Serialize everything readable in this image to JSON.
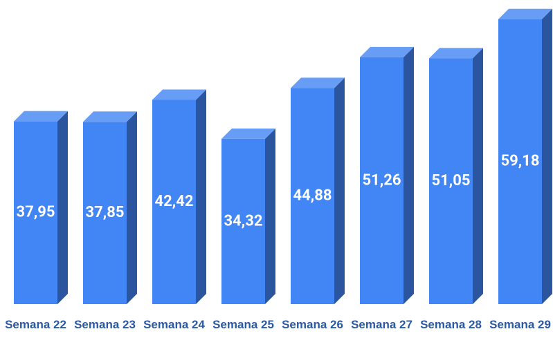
{
  "chart_data": {
    "type": "bar3d",
    "categories": [
      "Semana 22",
      "Semana 23",
      "Semana 24",
      "Semana 25",
      "Semana 26",
      "Semana 27",
      "Semana 28",
      "Semana 29"
    ],
    "values": [
      37.95,
      37.85,
      42.42,
      34.32,
      44.88,
      51.26,
      51.05,
      59.18
    ],
    "value_labels": [
      "37,95",
      "37,85",
      "42,42",
      "34,32",
      "44,88",
      "51,26",
      "51,05",
      "59,18"
    ],
    "color": "#4285f4",
    "ylim": [
      0,
      60
    ]
  }
}
